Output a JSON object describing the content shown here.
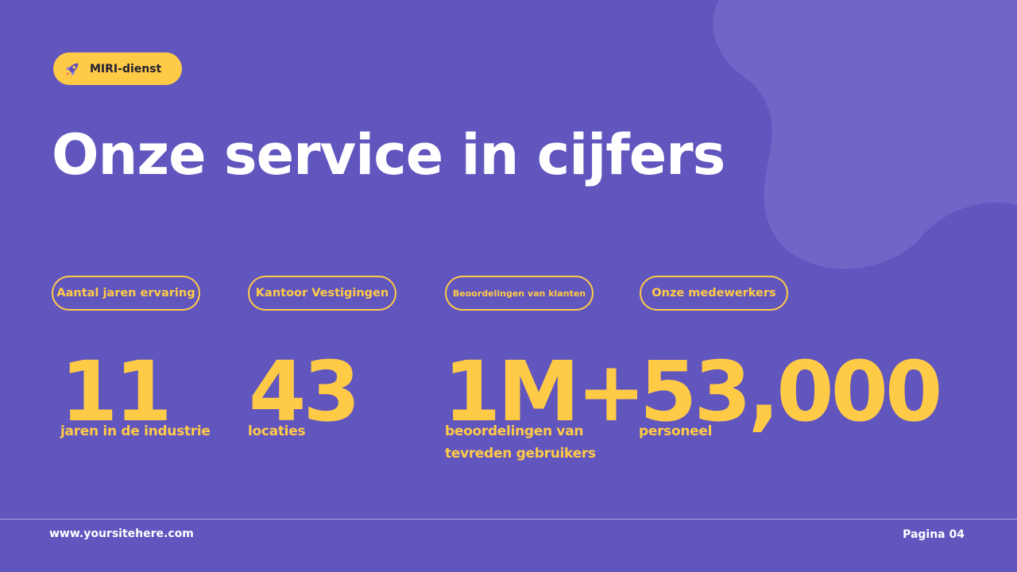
{
  "colors": {
    "background": "#6155be",
    "blob": "#7066c8",
    "accent": "#ffcb47",
    "title": "#ffffff"
  },
  "badge": {
    "icon": "rocket-icon",
    "label": "MIRI-dienst"
  },
  "title": "Onze service in cijfers",
  "stats": [
    {
      "category": "Aantal jaren ervaring",
      "value": "11",
      "description": "jaren in de industrie"
    },
    {
      "category": "Kantoor Vestigingen",
      "value": "43",
      "description": "locaties"
    },
    {
      "category": "Beoordelingen van klanten",
      "value": "1M+",
      "description": "beoordelingen van tevreden gebruikers"
    },
    {
      "category": "Onze medewerkers",
      "value": "53,000",
      "description": "personeel"
    }
  ],
  "footer": {
    "website": "www.yoursitehere.com",
    "page": "Pagina 04"
  }
}
